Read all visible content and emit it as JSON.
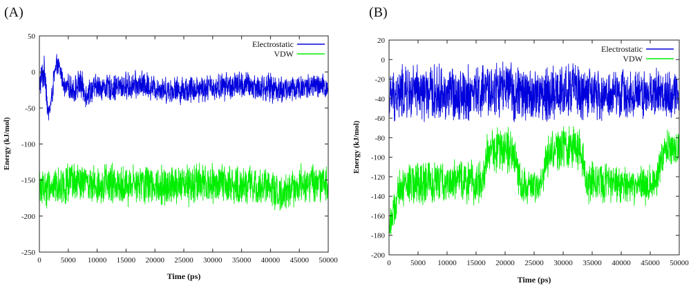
{
  "chart_data": [
    {
      "type": "line",
      "panel_label": "(A)",
      "xlabel": "Time (ps)",
      "ylabel": "Energy (kJ/mol)",
      "xlim": [
        0,
        50000
      ],
      "ylim": [
        -250,
        50
      ],
      "xticks": [
        0,
        5000,
        10000,
        15000,
        20000,
        25000,
        30000,
        35000,
        40000,
        45000,
        50000
      ],
      "yticks": [
        -250,
        -200,
        -150,
        -100,
        -50,
        0,
        50
      ],
      "grid": false,
      "legend_position": "top-right",
      "series": [
        {
          "name": "Electrostatic",
          "color": "#0000dd",
          "x": [
            0,
            500,
            1000,
            1500,
            2000,
            2500,
            3000,
            3500,
            4000,
            4500,
            5000,
            6000,
            7000,
            8000,
            10000,
            12000,
            15000,
            18000,
            20000,
            22000,
            25000,
            28000,
            30000,
            32000,
            35000,
            38000,
            40000,
            42000,
            45000,
            48000,
            50000
          ],
          "values": [
            -20,
            -5,
            0,
            -60,
            -45,
            -10,
            10,
            5,
            -10,
            -25,
            -20,
            -25,
            -15,
            -30,
            -20,
            -22,
            -20,
            -18,
            -22,
            -25,
            -25,
            -22,
            -22,
            -20,
            -18,
            -22,
            -22,
            -25,
            -22,
            -20,
            -22
          ],
          "spread": [
            25,
            25,
            25,
            18,
            18,
            18,
            15,
            15,
            15,
            18,
            18,
            22,
            22,
            22,
            20,
            20,
            22,
            22,
            20,
            20,
            22,
            22,
            20,
            22,
            22,
            22,
            22,
            22,
            22,
            20,
            20
          ]
        },
        {
          "name": "VDW",
          "color": "#00ee00",
          "x": [
            0,
            2000,
            5000,
            10000,
            15000,
            20000,
            25000,
            30000,
            35000,
            40000,
            42000,
            45000,
            50000
          ],
          "values": [
            -160,
            -160,
            -155,
            -155,
            -158,
            -155,
            -158,
            -157,
            -157,
            -160,
            -170,
            -155,
            -155
          ],
          "spread": [
            30,
            32,
            30,
            30,
            32,
            32,
            32,
            32,
            30,
            30,
            30,
            30,
            30
          ]
        }
      ]
    },
    {
      "type": "line",
      "panel_label": "(B)",
      "xlabel": "Time (ps)",
      "ylabel": "Energy (kJ/mol)",
      "xlim": [
        0,
        50000
      ],
      "ylim": [
        -200,
        20
      ],
      "xticks": [
        0,
        5000,
        10000,
        15000,
        20000,
        25000,
        30000,
        35000,
        40000,
        45000,
        50000
      ],
      "yticks": [
        -200,
        -180,
        -160,
        -140,
        -120,
        -100,
        -80,
        -60,
        -40,
        -20,
        0,
        20
      ],
      "grid": false,
      "legend_position": "top-right",
      "series": [
        {
          "name": "Electrostatic",
          "color": "#0000dd",
          "x": [
            0,
            2000,
            5000,
            10000,
            15000,
            17000,
            20000,
            22000,
            25000,
            28000,
            30000,
            32000,
            34000,
            36000,
            40000,
            45000,
            48000,
            50000
          ],
          "values": [
            -40,
            -35,
            -35,
            -35,
            -35,
            -32,
            -30,
            -35,
            -38,
            -35,
            -32,
            -30,
            -35,
            -38,
            -35,
            -35,
            -35,
            -35
          ],
          "spread": [
            28,
            32,
            32,
            32,
            32,
            32,
            32,
            32,
            32,
            32,
            32,
            32,
            32,
            28,
            28,
            28,
            28,
            28
          ]
        },
        {
          "name": "VDW",
          "color": "#00ee00",
          "x": [
            0,
            1000,
            2000,
            4000,
            8000,
            12000,
            16000,
            17000,
            20000,
            21500,
            23000,
            26000,
            27500,
            30000,
            33000,
            34000,
            38000,
            42000,
            46000,
            47500,
            50000
          ],
          "values": [
            -170,
            -155,
            -130,
            -128,
            -125,
            -125,
            -125,
            -95,
            -90,
            -100,
            -130,
            -132,
            -95,
            -90,
            -92,
            -125,
            -128,
            -128,
            -128,
            -90,
            -92
          ],
          "spread": [
            20,
            22,
            25,
            25,
            25,
            25,
            25,
            25,
            25,
            25,
            22,
            22,
            25,
            25,
            25,
            25,
            22,
            22,
            22,
            22,
            22
          ]
        }
      ]
    }
  ]
}
